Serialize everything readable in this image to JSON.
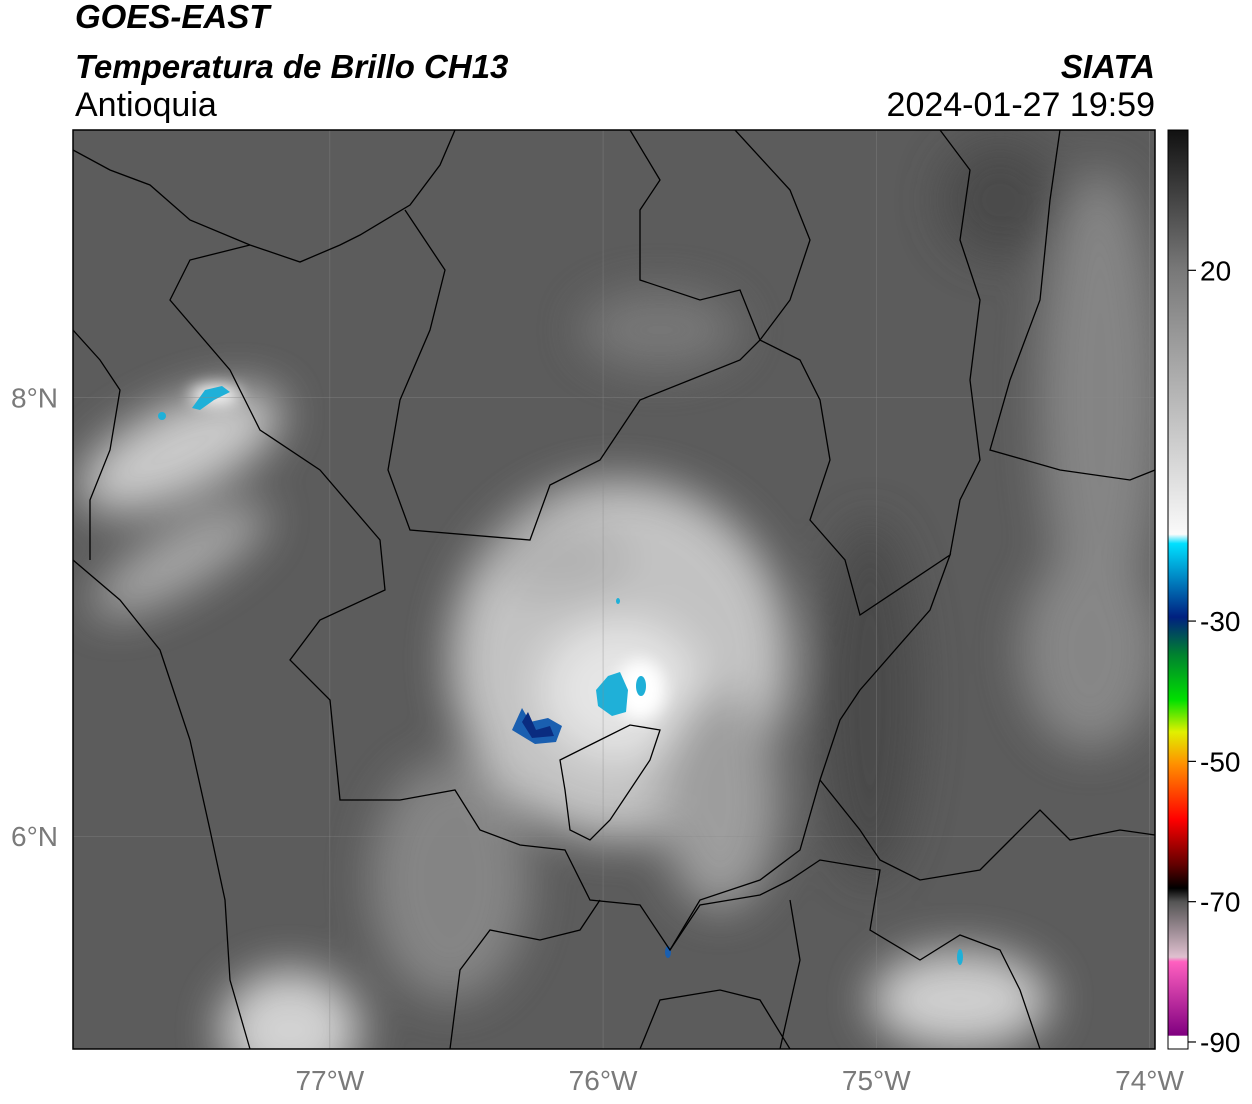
{
  "header": {
    "title": "GOES-EAST",
    "subtitle": "Temperatura de Brillo CH13",
    "region": "Antioquia",
    "agency": "SIATA",
    "datetime": "2024-01-27 19:59"
  },
  "map": {
    "xlim": [
      -77.94,
      -73.98
    ],
    "ylim": [
      5.03,
      9.22
    ],
    "xticks": [
      {
        "value": -77,
        "label": "77°W"
      },
      {
        "value": -76,
        "label": "76°W"
      },
      {
        "value": -75,
        "label": "75°W"
      },
      {
        "value": -74,
        "label": "74°W"
      }
    ],
    "yticks": [
      {
        "value": 8,
        "label": "8°N"
      },
      {
        "value": 6,
        "label": "6°N"
      }
    ]
  },
  "colorbar": {
    "clim": [
      -91,
      40
    ],
    "ticks": [
      20,
      -30,
      -50,
      -70,
      -90
    ]
  }
}
